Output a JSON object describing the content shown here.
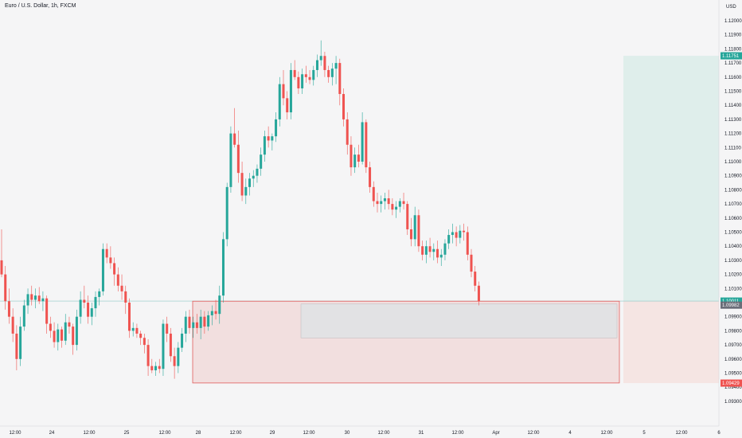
{
  "header": {
    "title": "Euro / U.S. Dollar, 1h, FXCM"
  },
  "colors": {
    "up": "#26a69a",
    "down": "#ef5350",
    "profit_zone": "#dfeeeb",
    "loss_zone": "#f5e5e3",
    "box_fill": "#f2dfdf",
    "box_border": "#e05c5c",
    "inner_box": "#e2e2e4",
    "price_line": "#8fc9c5"
  },
  "chart_data": {
    "type": "candlestick",
    "title": "Euro / U.S. Dollar, 1h, FXCM",
    "y_axis": {
      "unit": "USD",
      "unit_label": "USD",
      "range": [
        1.0925,
        1.1218
      ],
      "ticks": [
        "1.12000",
        "1.11900",
        "1.11800",
        "1.11700",
        "1.11600",
        "1.11500",
        "1.11400",
        "1.11300",
        "1.11200",
        "1.11100",
        "1.11000",
        "1.10900",
        "1.10800",
        "1.10700",
        "1.10600",
        "1.10500",
        "1.10400",
        "1.10300",
        "1.10200",
        "1.10100",
        "1.10000",
        "1.09900",
        "1.09800",
        "1.09700",
        "1.09600",
        "1.09500",
        "1.09400",
        "1.09300"
      ]
    },
    "x_axis": {
      "ticks": [
        "12:00",
        "24",
        "12:00",
        "25",
        "12:00",
        "28",
        "12:00",
        "29",
        "12:00",
        "30",
        "12:00",
        "31",
        "12:00",
        "Apr",
        "12:00",
        "4",
        "12:00",
        "5",
        "12:00",
        "6"
      ]
    },
    "price_labels": [
      {
        "price": 1.11751,
        "text": "1.11751",
        "color": "#26a69a"
      },
      {
        "price": 1.10011,
        "text": "1.10011",
        "color": "#26a69a"
      },
      {
        "price": 1.09982,
        "text": "1.09982",
        "color": "#6a6d78"
      },
      {
        "price": 1.09429,
        "text": "1.09429",
        "color": "#ef5350"
      }
    ],
    "position": {
      "entry": 1.10011,
      "target": 1.11751,
      "stop": 1.09429
    },
    "zone": {
      "top": 1.1001,
      "bottom": 1.0943
    },
    "inner_zone": {
      "top": 1.0999,
      "bottom": 1.0975
    },
    "grid": false,
    "candles": [
      [
        1.103,
        1.1052,
        1.1018,
        1.102
      ],
      [
        1.102,
        1.1026,
        1.0995,
        1.1001
      ],
      [
        1.1001,
        1.101,
        1.0985,
        1.099
      ],
      [
        1.099,
        1.0996,
        1.0972,
        1.0978
      ],
      [
        1.0978,
        1.0984,
        1.0952,
        1.096
      ],
      [
        1.096,
        1.099,
        1.0955,
        1.0983
      ],
      [
        1.0983,
        1.1002,
        1.098,
        1.0998
      ],
      [
        1.0998,
        1.101,
        1.0992,
        1.1006
      ],
      [
        1.1006,
        1.1012,
        1.0998,
        1.1002
      ],
      [
        1.1002,
        1.101,
        1.0996,
        1.1005
      ],
      [
        1.1005,
        1.1011,
        1.0999,
        1.1001
      ],
      [
        1.1001,
        1.1008,
        1.0994,
        1.1003
      ],
      [
        1.1003,
        1.1005,
        1.0978,
        1.0985
      ],
      [
        1.0985,
        1.099,
        1.0975,
        1.098
      ],
      [
        1.098,
        1.0986,
        1.0968,
        1.0972
      ],
      [
        1.0972,
        1.0985,
        1.0966,
        1.0981
      ],
      [
        1.0981,
        1.0983,
        1.0968,
        1.0973
      ],
      [
        1.0973,
        1.0992,
        1.097,
        1.0986
      ],
      [
        1.0986,
        1.099,
        1.0978,
        1.0983
      ],
      [
        1.0983,
        1.0985,
        1.0963,
        1.097
      ],
      [
        1.097,
        1.0995,
        1.0966,
        1.099
      ],
      [
        1.099,
        1.1008,
        1.0985,
        1.1002
      ],
      [
        1.1002,
        1.1012,
        1.0996,
        1.1
      ],
      [
        1.1,
        1.1005,
        1.0985,
        1.099
      ],
      [
        1.099,
        1.1,
        1.0984,
        1.0996
      ],
      [
        1.0996,
        1.1008,
        1.099,
        1.1004
      ],
      [
        1.1004,
        1.101,
        1.0998,
        1.1008
      ],
      [
        1.1008,
        1.1042,
        1.1005,
        1.1038
      ],
      [
        1.1038,
        1.1042,
        1.1028,
        1.1032
      ],
      [
        1.1032,
        1.104,
        1.1024,
        1.1028
      ],
      [
        1.1028,
        1.1032,
        1.1012,
        1.102
      ],
      [
        1.102,
        1.1025,
        1.1008,
        1.1012
      ],
      [
        1.1012,
        1.102,
        1.1002,
        1.1008
      ],
      [
        1.1008,
        1.1012,
        1.0992,
        1.1
      ],
      [
        1.1,
        1.1003,
        1.0975,
        1.098
      ],
      [
        1.098,
        1.0986,
        1.0976,
        1.0982
      ],
      [
        1.0982,
        1.0985,
        1.0975,
        1.0978
      ],
      [
        1.0978,
        1.098,
        1.097,
        1.0975
      ],
      [
        1.0975,
        1.0978,
        1.0964,
        1.097
      ],
      [
        1.097,
        1.0974,
        1.0948,
        1.0955
      ],
      [
        1.0955,
        1.096,
        1.095,
        1.0952
      ],
      [
        1.0952,
        1.0958,
        1.0948,
        1.0955
      ],
      [
        1.0955,
        1.096,
        1.095,
        1.0953
      ],
      [
        1.0953,
        1.0988,
        1.0948,
        1.0985
      ],
      [
        1.0985,
        1.099,
        1.0972,
        1.0978
      ],
      [
        1.0978,
        1.0982,
        1.0958,
        1.0962
      ],
      [
        1.0962,
        1.0968,
        1.0946,
        1.0955
      ],
      [
        1.0955,
        1.0972,
        1.095,
        1.0968
      ],
      [
        1.0968,
        1.0982,
        1.0965,
        1.0978
      ],
      [
        1.0978,
        1.0994,
        1.0972,
        1.099
      ],
      [
        1.099,
        1.0995,
        1.0978,
        1.0982
      ],
      [
        1.0982,
        1.099,
        1.0975,
        1.0986
      ],
      [
        1.0986,
        1.0992,
        1.0978,
        1.0982
      ],
      [
        1.0982,
        1.0995,
        1.0974,
        1.099
      ],
      [
        1.099,
        1.0994,
        1.0978,
        1.0983
      ],
      [
        1.0983,
        1.0994,
        1.098,
        1.0991
      ],
      [
        1.0991,
        1.0998,
        1.0984,
        1.0994
      ],
      [
        1.0994,
        1.1002,
        1.0988,
        1.0992
      ],
      [
        1.0992,
        1.1012,
        1.0985,
        1.1005
      ],
      [
        1.1005,
        1.105,
        1.1,
        1.1045
      ],
      [
        1.1045,
        1.1085,
        1.104,
        1.1082
      ],
      [
        1.1082,
        1.1125,
        1.1078,
        1.112
      ],
      [
        1.112,
        1.1138,
        1.111,
        1.1112
      ],
      [
        1.1112,
        1.1122,
        1.1085,
        1.1092
      ],
      [
        1.1092,
        1.11,
        1.1072,
        1.1076
      ],
      [
        1.1076,
        1.1088,
        1.107,
        1.1082
      ],
      [
        1.1082,
        1.1092,
        1.1076,
        1.1088
      ],
      [
        1.1088,
        1.1094,
        1.1082,
        1.109
      ],
      [
        1.109,
        1.1098,
        1.1085,
        1.1095
      ],
      [
        1.1095,
        1.111,
        1.109,
        1.1105
      ],
      [
        1.1105,
        1.1122,
        1.11,
        1.1118
      ],
      [
        1.1118,
        1.1125,
        1.111,
        1.1115
      ],
      [
        1.1115,
        1.112,
        1.1108,
        1.1118
      ],
      [
        1.1118,
        1.1135,
        1.1114,
        1.113
      ],
      [
        1.113,
        1.116,
        1.1125,
        1.1155
      ],
      [
        1.1155,
        1.1165,
        1.114,
        1.1145
      ],
      [
        1.1145,
        1.115,
        1.113,
        1.1135
      ],
      [
        1.1135,
        1.117,
        1.113,
        1.1165
      ],
      [
        1.1165,
        1.1172,
        1.1158,
        1.116
      ],
      [
        1.116,
        1.1164,
        1.1148,
        1.1152
      ],
      [
        1.1152,
        1.1166,
        1.1148,
        1.1162
      ],
      [
        1.1162,
        1.1168,
        1.1156,
        1.116
      ],
      [
        1.116,
        1.1165,
        1.1155,
        1.1158
      ],
      [
        1.1158,
        1.1168,
        1.1154,
        1.1165
      ],
      [
        1.1165,
        1.1176,
        1.116,
        1.1172
      ],
      [
        1.1172,
        1.1186,
        1.1168,
        1.1175
      ],
      [
        1.1175,
        1.1178,
        1.116,
        1.1165
      ],
      [
        1.1165,
        1.1168,
        1.1156,
        1.116
      ],
      [
        1.116,
        1.117,
        1.1154,
        1.1166
      ],
      [
        1.1166,
        1.1175,
        1.1155,
        1.117
      ],
      [
        1.117,
        1.1173,
        1.114,
        1.1148
      ],
      [
        1.1148,
        1.1152,
        1.1125,
        1.113
      ],
      [
        1.113,
        1.1135,
        1.1105,
        1.1112
      ],
      [
        1.1112,
        1.1118,
        1.109,
        1.1096
      ],
      [
        1.1096,
        1.111,
        1.1092,
        1.1105
      ],
      [
        1.1105,
        1.1112,
        1.1096,
        1.11
      ],
      [
        1.11,
        1.1135,
        1.1098,
        1.1128
      ],
      [
        1.1128,
        1.113,
        1.1092,
        1.1096
      ],
      [
        1.1096,
        1.11,
        1.1078,
        1.1082
      ],
      [
        1.1082,
        1.1086,
        1.1068,
        1.1072
      ],
      [
        1.1072,
        1.1078,
        1.1064,
        1.107
      ],
      [
        1.107,
        1.1076,
        1.1064,
        1.1072
      ],
      [
        1.1072,
        1.1078,
        1.1066,
        1.1074
      ],
      [
        1.1074,
        1.108,
        1.1066,
        1.107
      ],
      [
        1.107,
        1.1074,
        1.1062,
        1.1066
      ],
      [
        1.1066,
        1.1072,
        1.106,
        1.1068
      ],
      [
        1.1068,
        1.1074,
        1.1064,
        1.1072
      ],
      [
        1.1072,
        1.1078,
        1.1066,
        1.107
      ],
      [
        1.107,
        1.1072,
        1.1048,
        1.1052
      ],
      [
        1.1052,
        1.106,
        1.104,
        1.1045
      ],
      [
        1.1045,
        1.1068,
        1.104,
        1.1062
      ],
      [
        1.1062,
        1.1066,
        1.1036,
        1.104
      ],
      [
        1.104,
        1.1044,
        1.103,
        1.1034
      ],
      [
        1.1034,
        1.1044,
        1.1028,
        1.104
      ],
      [
        1.104,
        1.1046,
        1.1032,
        1.1036
      ],
      [
        1.1036,
        1.1042,
        1.103,
        1.1038
      ],
      [
        1.1038,
        1.1044,
        1.1028,
        1.1032
      ],
      [
        1.1032,
        1.1038,
        1.1026,
        1.1034
      ],
      [
        1.1034,
        1.1045,
        1.103,
        1.1042
      ],
      [
        1.1042,
        1.1052,
        1.1038,
        1.1048
      ],
      [
        1.1048,
        1.1056,
        1.1042,
        1.105
      ],
      [
        1.105,
        1.1054,
        1.104,
        1.1046
      ],
      [
        1.1046,
        1.1055,
        1.1042,
        1.1051
      ],
      [
        1.1051,
        1.1056,
        1.1044,
        1.105
      ],
      [
        1.105,
        1.1054,
        1.103,
        1.1034
      ],
      [
        1.1034,
        1.1038,
        1.1018,
        1.1022
      ],
      [
        1.1022,
        1.1026,
        1.1008,
        1.1012
      ],
      [
        1.1012,
        1.1015,
        1.0998,
        1.1001
      ]
    ]
  }
}
